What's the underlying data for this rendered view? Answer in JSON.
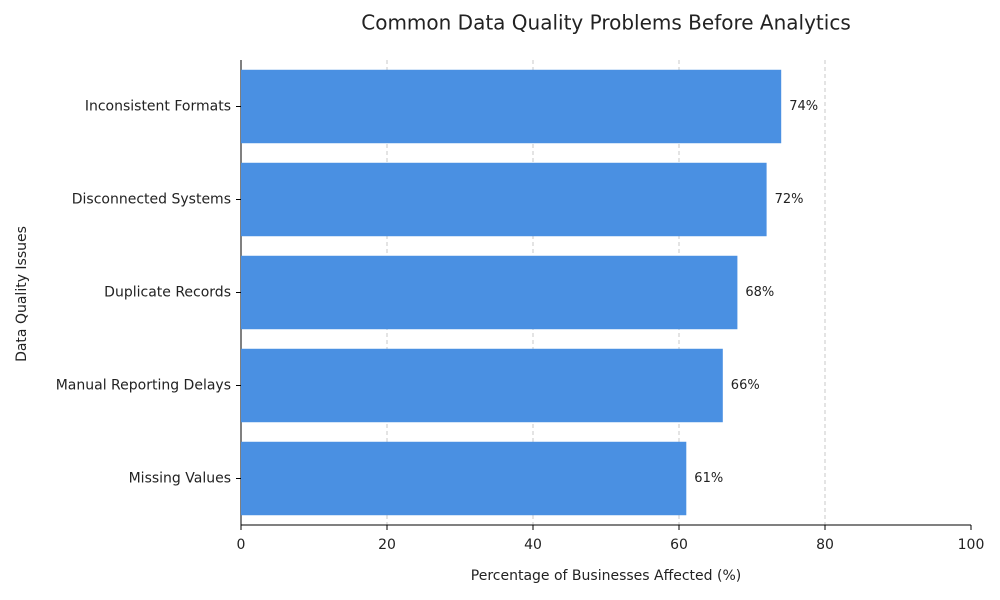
{
  "chart_data": {
    "type": "bar",
    "orientation": "horizontal",
    "title": "Common Data Quality Problems Before Analytics",
    "xlabel": "Percentage of Businesses Affected (%)",
    "ylabel": "Data Quality Issues",
    "categories": [
      "Inconsistent Formats",
      "Disconnected Systems",
      "Duplicate Records",
      "Manual Reporting Delays",
      "Missing Values"
    ],
    "values": [
      74,
      72,
      68,
      66,
      61
    ],
    "value_labels": [
      "74%",
      "72%",
      "68%",
      "66%",
      "61%"
    ],
    "color": "#4a90e2",
    "xlim": [
      0,
      100
    ],
    "xticks": [
      0,
      20,
      40,
      60,
      80,
      100
    ],
    "grid": true
  }
}
